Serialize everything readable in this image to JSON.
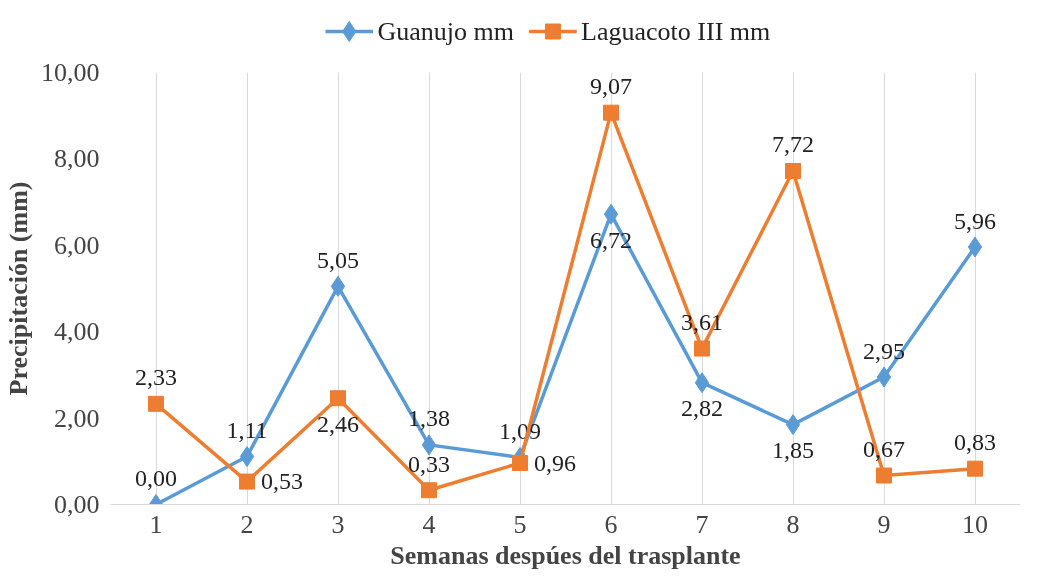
{
  "chart_data": {
    "type": "line",
    "xlabel": "Semanas despúes del trasplante",
    "ylabel": "Precipitación (mm)",
    "categories": [
      "1",
      "2",
      "3",
      "4",
      "5",
      "6",
      "7",
      "8",
      "9",
      "10"
    ],
    "series": [
      {
        "name": "Guanujo mm",
        "color": "#5b9bd5",
        "marker": "diamond",
        "values": [
          0.0,
          1.11,
          5.05,
          1.38,
          1.09,
          6.72,
          2.82,
          1.85,
          2.95,
          5.96
        ],
        "value_labels": [
          "0,00",
          "1,11",
          "5,05",
          "1,38",
          "1,09",
          "6,72",
          "2,82",
          "1,85",
          "2,95",
          "5,96"
        ]
      },
      {
        "name": "Laguacoto III mm",
        "color": "#ed7d31",
        "marker": "square",
        "values": [
          2.33,
          0.53,
          2.46,
          0.33,
          0.96,
          9.07,
          3.61,
          7.72,
          0.67,
          0.83
        ],
        "value_labels": [
          "2,33",
          "0,53",
          "2,46",
          "0,33",
          "0,96",
          "9,07",
          "3,61",
          "7,72",
          "0,67",
          "0,83"
        ]
      }
    ],
    "ylim": [
      0,
      10
    ],
    "yticks": [
      {
        "value": 0,
        "label": "0,00"
      },
      {
        "value": 2,
        "label": "2,00"
      },
      {
        "value": 4,
        "label": "4,00"
      },
      {
        "value": 6,
        "label": "6,00"
      },
      {
        "value": 8,
        "label": "8,00"
      },
      {
        "value": 10,
        "label": "10,00"
      }
    ],
    "grid": "x",
    "legend": "top",
    "line_style": "solid"
  }
}
